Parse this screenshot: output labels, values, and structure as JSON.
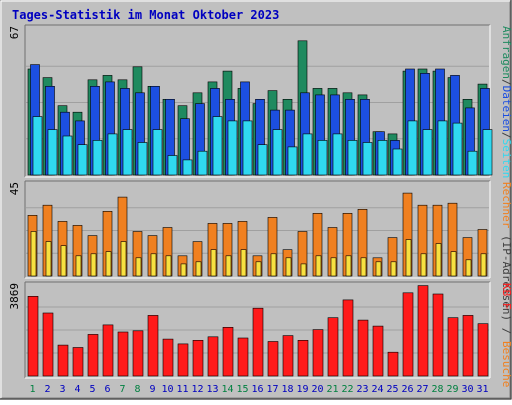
{
  "title": "Tages-Statistik im Monat Oktober 2023",
  "colors": {
    "title": "#0000c0",
    "background": "#c0c0c0",
    "weekday_label": "#0000c0",
    "weekend_label": "#008040",
    "anfragen": "#1f8a5f",
    "dateien": "#1c4fe0",
    "seiten": "#30d8f0",
    "besuche": "#f08020",
    "rechner": "#f8e040",
    "kb": "#ff1a1a"
  },
  "chart_data": [
    {
      "type": "bar",
      "panel": "top",
      "ymax_label": "67",
      "ymax": 67,
      "series_label_parts": [
        {
          "text": "Anfragen",
          "key": "anfragen"
        },
        {
          "text": "/",
          "key": "sep"
        },
        {
          "text": "Dateien",
          "key": "dateien"
        },
        {
          "text": "/",
          "key": "sep"
        },
        {
          "text": "Seiten",
          "key": "seiten"
        }
      ],
      "series": [
        {
          "name": "Anfragen",
          "values": [
            49,
            45,
            32,
            29,
            44,
            46,
            44,
            50,
            41,
            35,
            32,
            38,
            43,
            48,
            40,
            33,
            39,
            35,
            62,
            40,
            40,
            38,
            37,
            20,
            19,
            48,
            49,
            48,
            45,
            35,
            42
          ]
        },
        {
          "name": "Dateien",
          "values": [
            51,
            41,
            29,
            25,
            41,
            43,
            40,
            38,
            41,
            35,
            26,
            33,
            40,
            35,
            43,
            35,
            30,
            30,
            38,
            37,
            37,
            35,
            35,
            20,
            16,
            49,
            47,
            49,
            46,
            31,
            40
          ]
        },
        {
          "name": "Seiten",
          "values": [
            27,
            21,
            18,
            14,
            16,
            19,
            21,
            15,
            21,
            9,
            7,
            11,
            27,
            25,
            25,
            14,
            21,
            13,
            19,
            16,
            19,
            16,
            15,
            16,
            12,
            25,
            21,
            25,
            24,
            11,
            21
          ]
        }
      ]
    },
    {
      "type": "bar",
      "panel": "middle",
      "ymax_label": "45",
      "ymax": 45,
      "series_label_parts": [
        {
          "text": "Rechner",
          "key": "besuche"
        },
        {
          "text": " (IP-Adressen) / ",
          "key": "sep"
        },
        {
          "text": "Besuche",
          "key": "besuche"
        }
      ],
      "series": [
        {
          "name": "Besuche",
          "values": [
            30,
            35,
            27,
            25,
            20,
            32,
            39,
            22,
            20,
            24,
            10,
            17,
            26,
            26,
            27,
            10,
            29,
            13,
            22,
            31,
            24,
            31,
            33,
            9,
            19,
            41,
            35,
            35,
            36,
            19,
            23
          ]
        },
        {
          "name": "Rechner",
          "values": [
            22,
            17,
            15,
            10,
            11,
            12,
            17,
            9,
            11,
            10,
            6,
            7,
            13,
            10,
            13,
            7,
            11,
            9,
            6,
            10,
            9,
            10,
            9,
            7,
            7,
            18,
            11,
            16,
            12,
            8,
            11
          ]
        }
      ]
    },
    {
      "type": "bar",
      "panel": "bottom",
      "ymax_label": "3869",
      "ymax": 3869,
      "series_label_parts": [
        {
          "text": "KB F",
          "key": "kb"
        }
      ],
      "series": [
        {
          "name": "KB F",
          "values": [
            3350,
            2650,
            1300,
            1200,
            1750,
            2150,
            1850,
            1900,
            2550,
            1550,
            1350,
            1500,
            1650,
            2050,
            1600,
            2850,
            1450,
            1700,
            1500,
            1950,
            2450,
            3200,
            2350,
            2100,
            1000,
            3500,
            3800,
            3450,
            2450,
            2550,
            2200
          ]
        }
      ]
    }
  ],
  "days": [
    "1",
    "2",
    "3",
    "4",
    "5",
    "6",
    "7",
    "8",
    "9",
    "10",
    "11",
    "12",
    "13",
    "14",
    "15",
    "16",
    "17",
    "18",
    "19",
    "20",
    "21",
    "22",
    "23",
    "24",
    "25",
    "26",
    "27",
    "28",
    "29",
    "30",
    "31"
  ],
  "weekend_days": [
    1,
    7,
    8,
    14,
    15,
    21,
    22,
    28,
    29
  ]
}
